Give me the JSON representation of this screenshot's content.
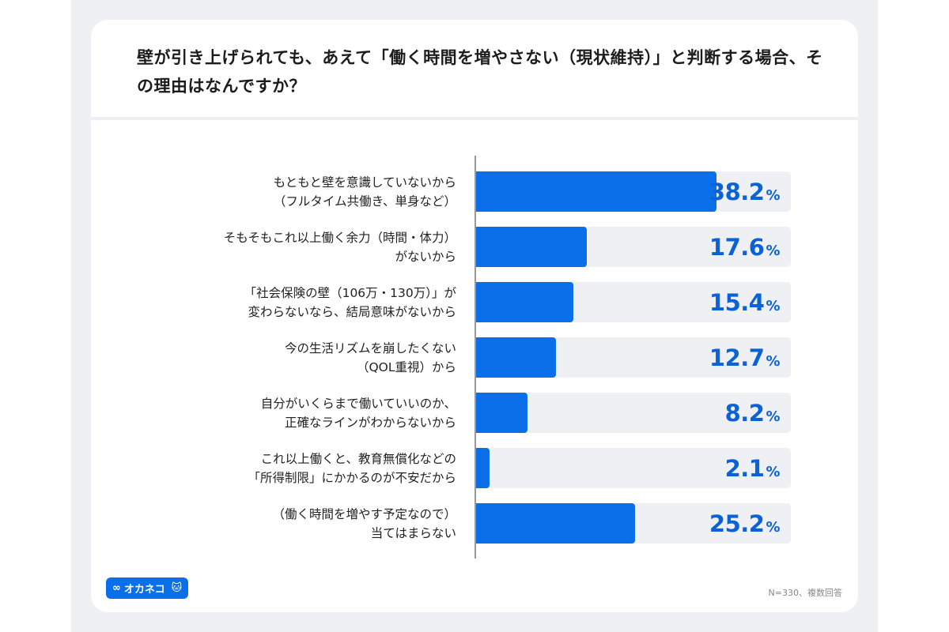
{
  "title": "壁が引き上げられても、あえて「働く時間を増やさない（現状維持）」と判断する場合、その理由はなんですか？",
  "logo": {
    "text": "オカネコ",
    "icon": "infinity-icon"
  },
  "note": "N=330、複数回答",
  "chart_data": {
    "type": "bar",
    "orientation": "horizontal",
    "title": "壁が引き上げられても、あえて「働く時間を増やさない（現状維持）」と判断する場合、その理由はなんですか？",
    "categories": [
      [
        "もともと壁を意識していないから",
        "（フルタイム共働き、単身など）"
      ],
      [
        "そもそもこれ以上働く余力（時間・体力）",
        "がないから"
      ],
      [
        "「社会保険の壁（106万・130万）」が",
        "変わらないなら、結局意味がないから"
      ],
      [
        "今の生活リズムを崩したくない",
        "（QOL重視）から"
      ],
      [
        "自分がいくらまで働いていいのか、",
        "正確なラインがわからないから"
      ],
      [
        "これ以上働くと、教育無償化などの",
        "「所得制限」にかかるのが不安だから"
      ],
      [
        "（働く時間を増やす予定なので）",
        "当てはまらない"
      ]
    ],
    "values": [
      38.2,
      17.6,
      15.4,
      12.7,
      8.2,
      2.1,
      25.2
    ],
    "unit": "%",
    "xlim": [
      0,
      50
    ],
    "bar_color": "#0a6fe8",
    "track_color": "#eef0f3",
    "grid": false
  }
}
